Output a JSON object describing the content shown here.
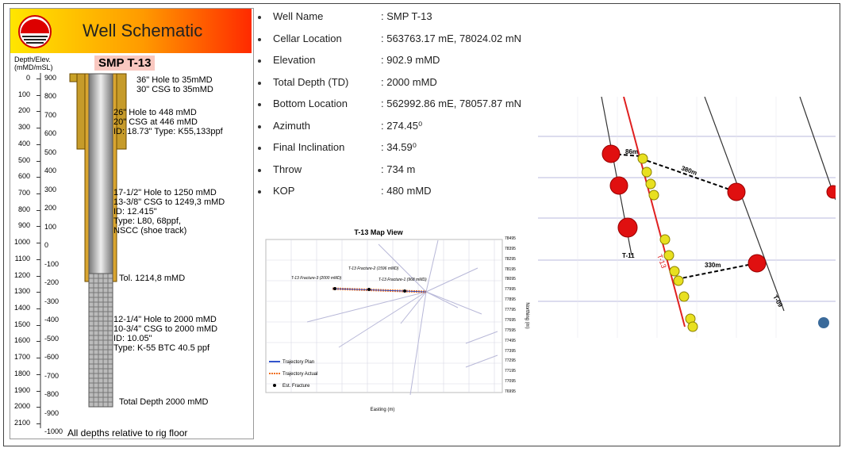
{
  "schematic": {
    "title": "Well Schematic",
    "axis_label_1": "Depth/Elev.",
    "axis_label_2": "(mMD/mSL)",
    "well_name": "SMP T-13",
    "depths": [
      "0",
      "100",
      "200",
      "300",
      "400",
      "500",
      "600",
      "700",
      "800",
      "900",
      "1000",
      "1100",
      "1200",
      "1300",
      "1400",
      "1500",
      "1600",
      "1700",
      "1800",
      "1900",
      "2000",
      "2100"
    ],
    "elevations": [
      "900",
      "800",
      "700",
      "600",
      "500",
      "400",
      "300",
      "200",
      "100",
      "0",
      "-100",
      "-200",
      "-300",
      "-400",
      "-500",
      "-600",
      "-700",
      "-800",
      "-900",
      "-1000"
    ],
    "annotations": [
      [
        "36\" Hole to 35mMD",
        "30\" CSG to 35mMD"
      ],
      [
        "26\" Hole to 448 mMD",
        "20\" CSG at 446 mMD",
        "ID: 18.73\" Type: K55,133ppf"
      ],
      [
        "17-1/2\" Hole to 1250 mMD",
        "13-3/8\" CSG to 1249,3 mMD",
        "ID: 12.415\"",
        "Type: L80, 68ppf,",
        "NSCC (shoe track)"
      ],
      [
        "Tol. 1214,8 mMD"
      ],
      [
        "12-1/4\" Hole to 2000 mMD",
        "10-3/4\" CSG to 2000 mMD",
        "ID: 10.05\"",
        "Type: K-55 BTC 40.5 ppf"
      ],
      [
        "Total Depth 2000 mMD"
      ]
    ],
    "footnote": "All depths relative to rig floor"
  },
  "details": [
    [
      "Well Name",
      ": SMP T-13"
    ],
    [
      "Cellar Location",
      ": 563763.17 mE, 78024.02 mN"
    ],
    [
      "Elevation",
      ": 902.9 mMD"
    ],
    [
      "Total Depth (TD)",
      ": 2000 mMD"
    ],
    [
      "Bottom Location",
      ": 562992.86 mE, 78057.87 mN"
    ],
    [
      "Azimuth",
      ": 274.45⁰"
    ],
    [
      "Final Inclination",
      ": 34.59⁰"
    ],
    [
      "Throw",
      ": 734 m"
    ],
    [
      "KOP",
      ": 480 mMD"
    ]
  ],
  "map_view": {
    "title": "T-13 Map View",
    "x_label": "Easting (m)",
    "y_label": "Northing (m)",
    "y_ticks": [
      "78495",
      "78395",
      "78295",
      "78195",
      "78095",
      "77995",
      "77895",
      "77795",
      "77695",
      "77595",
      "77495",
      "77395",
      "77295",
      "77195",
      "77095",
      "76995"
    ],
    "fractures": [
      "T-13 Fracture-3 (2000 mMD)",
      "T-13 Fracture-2 (1596 mMD)",
      "T-13 Fracture-1 (968 mMD)"
    ],
    "legend": [
      "Trajectory Plan",
      "Trajectory Actual",
      "Est. Fracture"
    ]
  },
  "view_3d": {
    "distances": [
      "86m",
      "380m",
      "330m"
    ],
    "wells": [
      "T-13",
      "T-11",
      "T-09"
    ]
  }
}
